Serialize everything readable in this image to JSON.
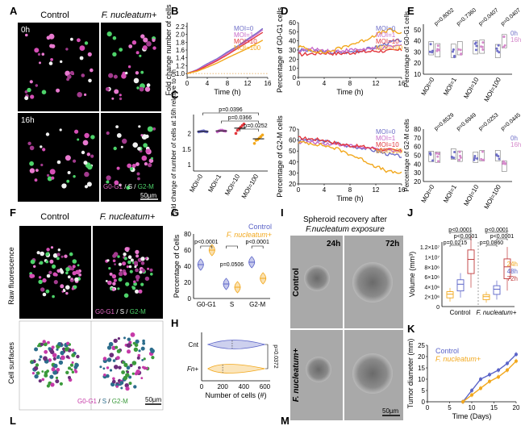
{
  "panel_letters": {
    "A": "A",
    "B": "B",
    "C": "C",
    "D": "D",
    "E": "E",
    "F": "F",
    "G": "G",
    "H": "H",
    "I": "I",
    "J": "J",
    "K": "K",
    "L": "L",
    "M": "M"
  },
  "colors": {
    "moi0": "#6f6fc8",
    "moi1": "#c76ac9",
    "moi10": "#e2383e",
    "moi100": "#f2a81d",
    "control": "#5b64c8",
    "fn": "#f2a81d",
    "h0": "#6f6fc8",
    "h16": "#d58acb",
    "h24": "#f2a81d",
    "h48": "#5b64c8",
    "h72": "#c0393b"
  },
  "panelA": {
    "control": "Control",
    "fn": "F. nucleatum+",
    "t0": "0h",
    "t16": "16h",
    "legend_g0": "G0-G1",
    "legend_s": "S",
    "legend_g2": "G2-M",
    "slash": "/",
    "scale": "50µm"
  },
  "panelF": {
    "control": "Control",
    "fn": "F. nucleatum+",
    "row1": "Raw fluorescence",
    "row2": "Cell surfaces",
    "scale": "50µm"
  },
  "panelI": {
    "title1": "Spheroid recovery after",
    "title2": "F.nucleatum exposure",
    "t24": "24h",
    "t72": "72h",
    "row1": "Control",
    "row2": "F. nucleatum+",
    "scale": "50µm"
  },
  "chart_data": [
    {
      "panel": "B",
      "type": "line",
      "xlabel": "Time (h)",
      "ylabel": "Fold change number of cells",
      "xticks": [
        0,
        4,
        8,
        12,
        16
      ],
      "yticks": [
        "1.0",
        "1.2",
        "1.4",
        "1.6",
        "1.8",
        "2.0",
        "2.2"
      ],
      "xlim": [
        0,
        16
      ],
      "ylim": [
        0.9,
        2.3
      ],
      "legend": [
        "MOI=0",
        "MOI=1",
        "MOI=10",
        "MOI=100"
      ],
      "x": [
        0,
        2,
        4,
        6,
        8,
        10,
        12,
        14,
        15
      ],
      "series": [
        {
          "name": "MOI=0",
          "values": [
            1.0,
            1.1,
            1.25,
            1.38,
            1.55,
            1.7,
            1.88,
            2.05,
            2.15
          ]
        },
        {
          "name": "MOI=1",
          "values": [
            1.0,
            1.09,
            1.23,
            1.36,
            1.52,
            1.67,
            1.85,
            2.02,
            2.12
          ]
        },
        {
          "name": "MOI=10",
          "values": [
            1.0,
            1.08,
            1.2,
            1.33,
            1.48,
            1.64,
            1.8,
            1.97,
            2.05
          ]
        },
        {
          "name": "MOI=100",
          "values": [
            1.0,
            1.06,
            1.16,
            1.27,
            1.4,
            1.52,
            1.64,
            1.78,
            1.85
          ]
        }
      ]
    },
    {
      "panel": "C",
      "type": "scatter",
      "ylabel": "Fold change of number of cells at 16h relative to 0h",
      "categories": [
        "MOI=0",
        "MOI=1",
        "MOI=10",
        "MOI=100"
      ],
      "yticks": [
        "1",
        "1.5",
        "2"
      ],
      "ylim": [
        0.8,
        2.6
      ],
      "pvalues": [
        "p=0.0396",
        "p=0.0366",
        "p=0.0252"
      ],
      "points": [
        [
          2.05,
          2.06,
          2.07,
          2.08,
          2.06,
          2.05
        ],
        [
          2.05,
          2.08,
          2.1,
          2.1,
          2.08,
          2.07
        ],
        [
          2.0,
          2.1,
          2.15,
          2.2,
          2.25,
          2.3
        ],
        [
          1.68,
          1.78,
          1.8,
          1.85,
          1.9,
          1.95
        ]
      ]
    },
    {
      "panel": "D-top",
      "type": "line",
      "xlabel": "Time (h)",
      "ylabel": "Percentage of G0-G1 cells",
      "xticks": [
        0,
        4,
        8,
        12,
        16
      ],
      "yticks": [
        0,
        10,
        20,
        30,
        40,
        50,
        60
      ],
      "xlim": [
        0,
        16
      ],
      "ylim": [
        0,
        60
      ],
      "legend": [
        "MOI=0",
        "MOI=1",
        "MOI=10",
        "MOI=100"
      ],
      "x": [
        0,
        2,
        4,
        6,
        8,
        10,
        12,
        14,
        16
      ],
      "series": [
        {
          "name": "MOI=0",
          "values": [
            30,
            29,
            28,
            27,
            28,
            30,
            33,
            38,
            41
          ]
        },
        {
          "name": "MOI=1",
          "values": [
            29,
            31,
            30,
            29,
            30,
            31,
            31,
            33,
            35
          ]
        },
        {
          "name": "MOI=10",
          "values": [
            25,
            26,
            27,
            26,
            27,
            28,
            29,
            29,
            30
          ]
        },
        {
          "name": "MOI=100",
          "values": [
            34,
            30,
            27,
            31,
            36,
            40,
            47,
            52,
            48
          ]
        }
      ]
    },
    {
      "panel": "D-bottom",
      "type": "line",
      "xlabel": "Time (h)",
      "ylabel": "Percentage of G2-M cells",
      "xticks": [
        0,
        4,
        8,
        12,
        16
      ],
      "yticks": [
        20,
        30,
        40,
        50,
        60,
        70
      ],
      "xlim": [
        0,
        16
      ],
      "ylim": [
        20,
        70
      ],
      "legend": [
        "MOI=0",
        "MOI=1",
        "MOI=10",
        "MOI=100"
      ],
      "x": [
        0,
        2,
        4,
        6,
        8,
        10,
        12,
        14,
        16
      ],
      "series": [
        {
          "name": "MOI=0",
          "values": [
            60,
            60,
            59,
            57,
            54,
            53,
            50,
            47,
            45
          ]
        },
        {
          "name": "MOI=1",
          "values": [
            58,
            58,
            57,
            56,
            55,
            53,
            52,
            50,
            49
          ]
        },
        {
          "name": "MOI=10",
          "values": [
            62,
            61,
            60,
            57,
            55,
            54,
            52,
            51,
            50
          ]
        },
        {
          "name": "MOI=100",
          "values": [
            58,
            57,
            55,
            52,
            47,
            42,
            36,
            31,
            30
          ]
        }
      ]
    },
    {
      "panel": "E-top",
      "type": "scatter",
      "ylabel": "Percentage of G0-G1 cells",
      "categories": [
        "MOI=0",
        "MOI=1",
        "MOI=10",
        "MOI=100"
      ],
      "yticks": [
        10,
        20,
        30,
        40,
        50
      ],
      "ylim": [
        10,
        55
      ],
      "pvalues": [
        "p=0.8002",
        "p=0.7360",
        "p=0.0407",
        "p=0.0407"
      ],
      "legend": [
        "0h",
        "16h"
      ]
    },
    {
      "panel": "E-bottom",
      "type": "scatter",
      "ylabel": "Percentage of G2-M cells",
      "categories": [
        "MOI=0",
        "MOI=1",
        "MOI=10",
        "MOI=100"
      ],
      "yticks": [
        20,
        30,
        40,
        50,
        60,
        70,
        80
      ],
      "ylim": [
        20,
        80
      ],
      "pvalues": [
        "p=0.8529",
        "p=0.6949",
        "p=0.0253",
        "p=0.0445"
      ],
      "legend": [
        "0h",
        "16h"
      ]
    },
    {
      "panel": "G",
      "type": "violin",
      "ylabel": "Percentage of Cells",
      "categories": [
        "G0-G1",
        "S",
        "G2-M"
      ],
      "yticks": [
        0,
        20,
        40,
        60,
        80
      ],
      "ylim": [
        0,
        80
      ],
      "legend": [
        "Control",
        "F. nucleatum+"
      ],
      "pvalues": [
        "p<0.0001",
        "p=0.0506",
        "p<0.0001"
      ],
      "medians": [
        [
          42,
          60
        ],
        [
          18,
          14
        ],
        [
          45,
          25
        ]
      ]
    },
    {
      "panel": "H",
      "type": "violin",
      "xlabel": "Number of cells (#)",
      "categories": [
        "Cnt",
        "Fn+"
      ],
      "xticks": [
        0,
        200,
        400,
        600
      ],
      "xlim": [
        0,
        650
      ],
      "pvalues": [
        "p=0.0372"
      ],
      "medians": [
        290,
        200
      ]
    },
    {
      "panel": "J",
      "type": "box",
      "ylabel": "Volume (mm³)",
      "yticks": [
        "0",
        "2×10⁶",
        "4×10⁶",
        "6×10⁶",
        "8×10⁶",
        "1×10⁷",
        "1.2×10⁷"
      ],
      "ylim": [
        0,
        13
      ],
      "groups": [
        "Control",
        "F. nucleatum+"
      ],
      "legend": [
        "24h",
        "48h",
        "72h"
      ],
      "pvalues": [
        "p<0.0001",
        "p<0.0001",
        "p=0.0215",
        "p<0.0001",
        "p<0.0001",
        "p=0.0860"
      ],
      "medians": [
        [
          2.5,
          4.5,
          9.5
        ],
        [
          2.0,
          3.5,
          8.0
        ]
      ]
    },
    {
      "panel": "K",
      "type": "line",
      "xlabel": "Time (Days)",
      "ylabel": "Tumor diameter (mm)",
      "xticks": [
        0,
        5,
        10,
        15,
        20
      ],
      "yticks": [
        0,
        5,
        10,
        15,
        20,
        25
      ],
      "xlim": [
        0,
        20
      ],
      "ylim": [
        0,
        25
      ],
      "legend": [
        "Control",
        "F. nucleatum+"
      ],
      "x": [
        8,
        10,
        12,
        14,
        16,
        18,
        20
      ],
      "series": [
        {
          "name": "Control",
          "values": [
            0,
            5,
            10,
            12,
            14,
            17,
            21
          ]
        },
        {
          "name": "F. nucleatum+",
          "values": [
            0,
            3,
            6,
            9,
            11,
            14,
            18
          ]
        }
      ]
    }
  ]
}
